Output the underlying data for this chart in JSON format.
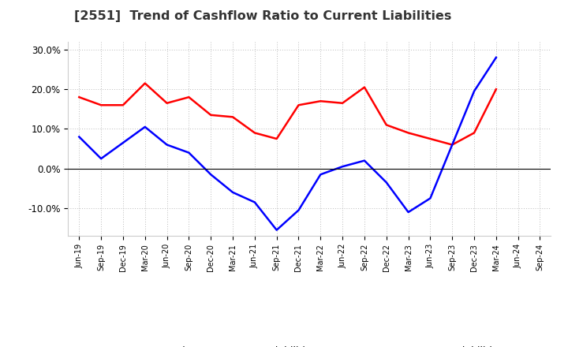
{
  "title": "[2551]  Trend of Cashflow Ratio to Current Liabilities",
  "x_labels": [
    "Jun-19",
    "Sep-19",
    "Dec-19",
    "Mar-20",
    "Jun-20",
    "Sep-20",
    "Dec-20",
    "Mar-21",
    "Jun-21",
    "Sep-21",
    "Dec-21",
    "Mar-22",
    "Jun-22",
    "Sep-22",
    "Dec-22",
    "Mar-23",
    "Jun-23",
    "Sep-23",
    "Dec-23",
    "Mar-24",
    "Jun-24",
    "Sep-24"
  ],
  "operating_cf": [
    18.0,
    16.0,
    16.0,
    21.5,
    16.5,
    18.0,
    13.5,
    13.0,
    9.0,
    7.5,
    16.0,
    17.0,
    16.5,
    20.5,
    11.0,
    9.0,
    7.5,
    6.0,
    9.0,
    20.0,
    null,
    null
  ],
  "free_cf": [
    8.0,
    2.5,
    6.5,
    10.5,
    6.0,
    4.0,
    -1.5,
    -6.0,
    -8.5,
    -15.5,
    -10.5,
    -1.5,
    0.5,
    2.0,
    -3.5,
    -11.0,
    -7.5,
    6.0,
    19.5,
    28.0,
    null,
    null
  ],
  "ylim": [
    -17,
    32
  ],
  "yticks": [
    -10.0,
    0.0,
    10.0,
    20.0,
    30.0
  ],
  "operating_color": "#FF0000",
  "free_color": "#0000FF",
  "background_color": "#FFFFFF",
  "grid_color": "#BBBBBB",
  "legend_labels": [
    "Operating CF to Current Liabilities",
    "Free CF to Current Liabilities"
  ]
}
